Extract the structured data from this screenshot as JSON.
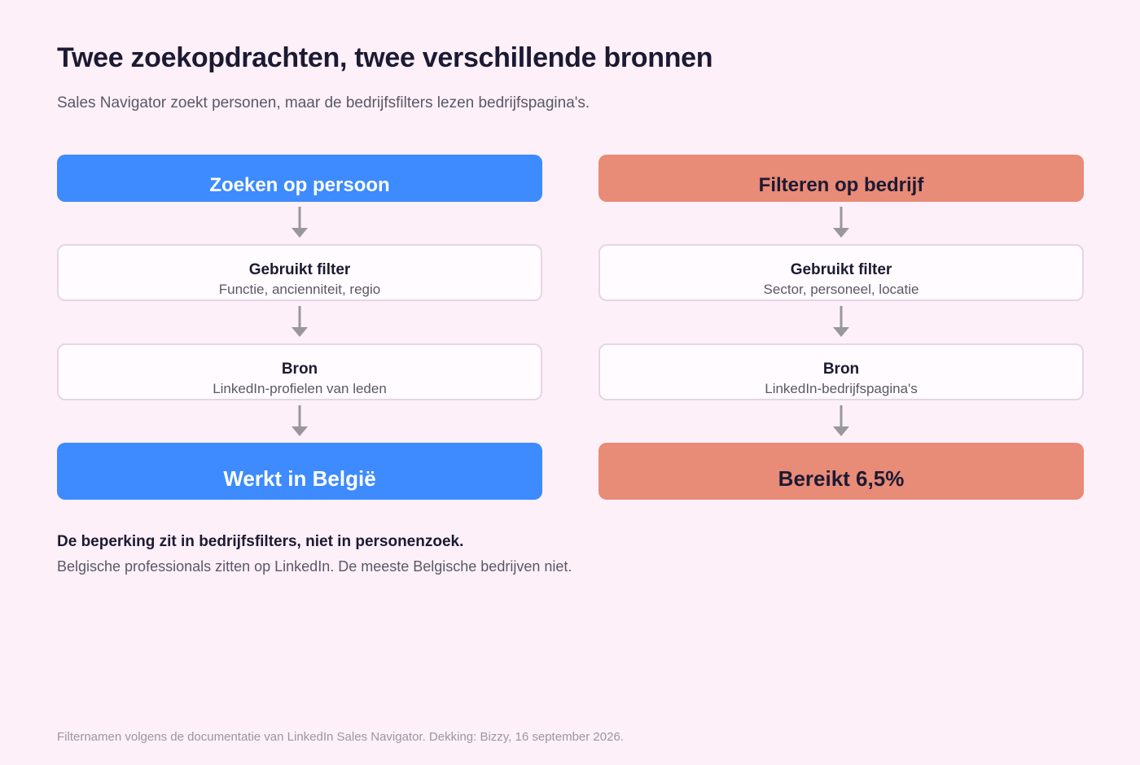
{
  "title": "Twee zoekopdrachten, twee verschillende bronnen",
  "subtitle": "Sales Navigator zoekt personen, maar de bedrijfsfilters lezen bedrijfspagina's.",
  "colors": {
    "background": "#fdf0f9",
    "person_accent": "#3d8bff",
    "company_accent": "#e88b77",
    "arrow": "#9a969e"
  },
  "left": {
    "header": "Zoeken op persoon",
    "filter_label": "Gebruikt filter",
    "filter_value": "Functie, ancienniteit, regio",
    "source_label": "Bron",
    "source_value": "LinkedIn-profielen van leden",
    "result": "Werkt in België"
  },
  "right": {
    "header": "Filteren op bedrijf",
    "filter_label": "Gebruikt filter",
    "filter_value": "Sector, personeel, locatie",
    "source_label": "Bron",
    "source_value": "LinkedIn-bedrijfspagina's",
    "result": "Bereikt 6,5%"
  },
  "note": {
    "title": "De beperking zit in bedrijfsfilters, niet in personenzoek.",
    "text": "Belgische professionals zitten op LinkedIn. De meeste Belgische bedrijven niet."
  },
  "footer": "Filternamen volgens de documentatie van LinkedIn Sales Navigator. Dekking: Bizzy, 16 september 2026."
}
